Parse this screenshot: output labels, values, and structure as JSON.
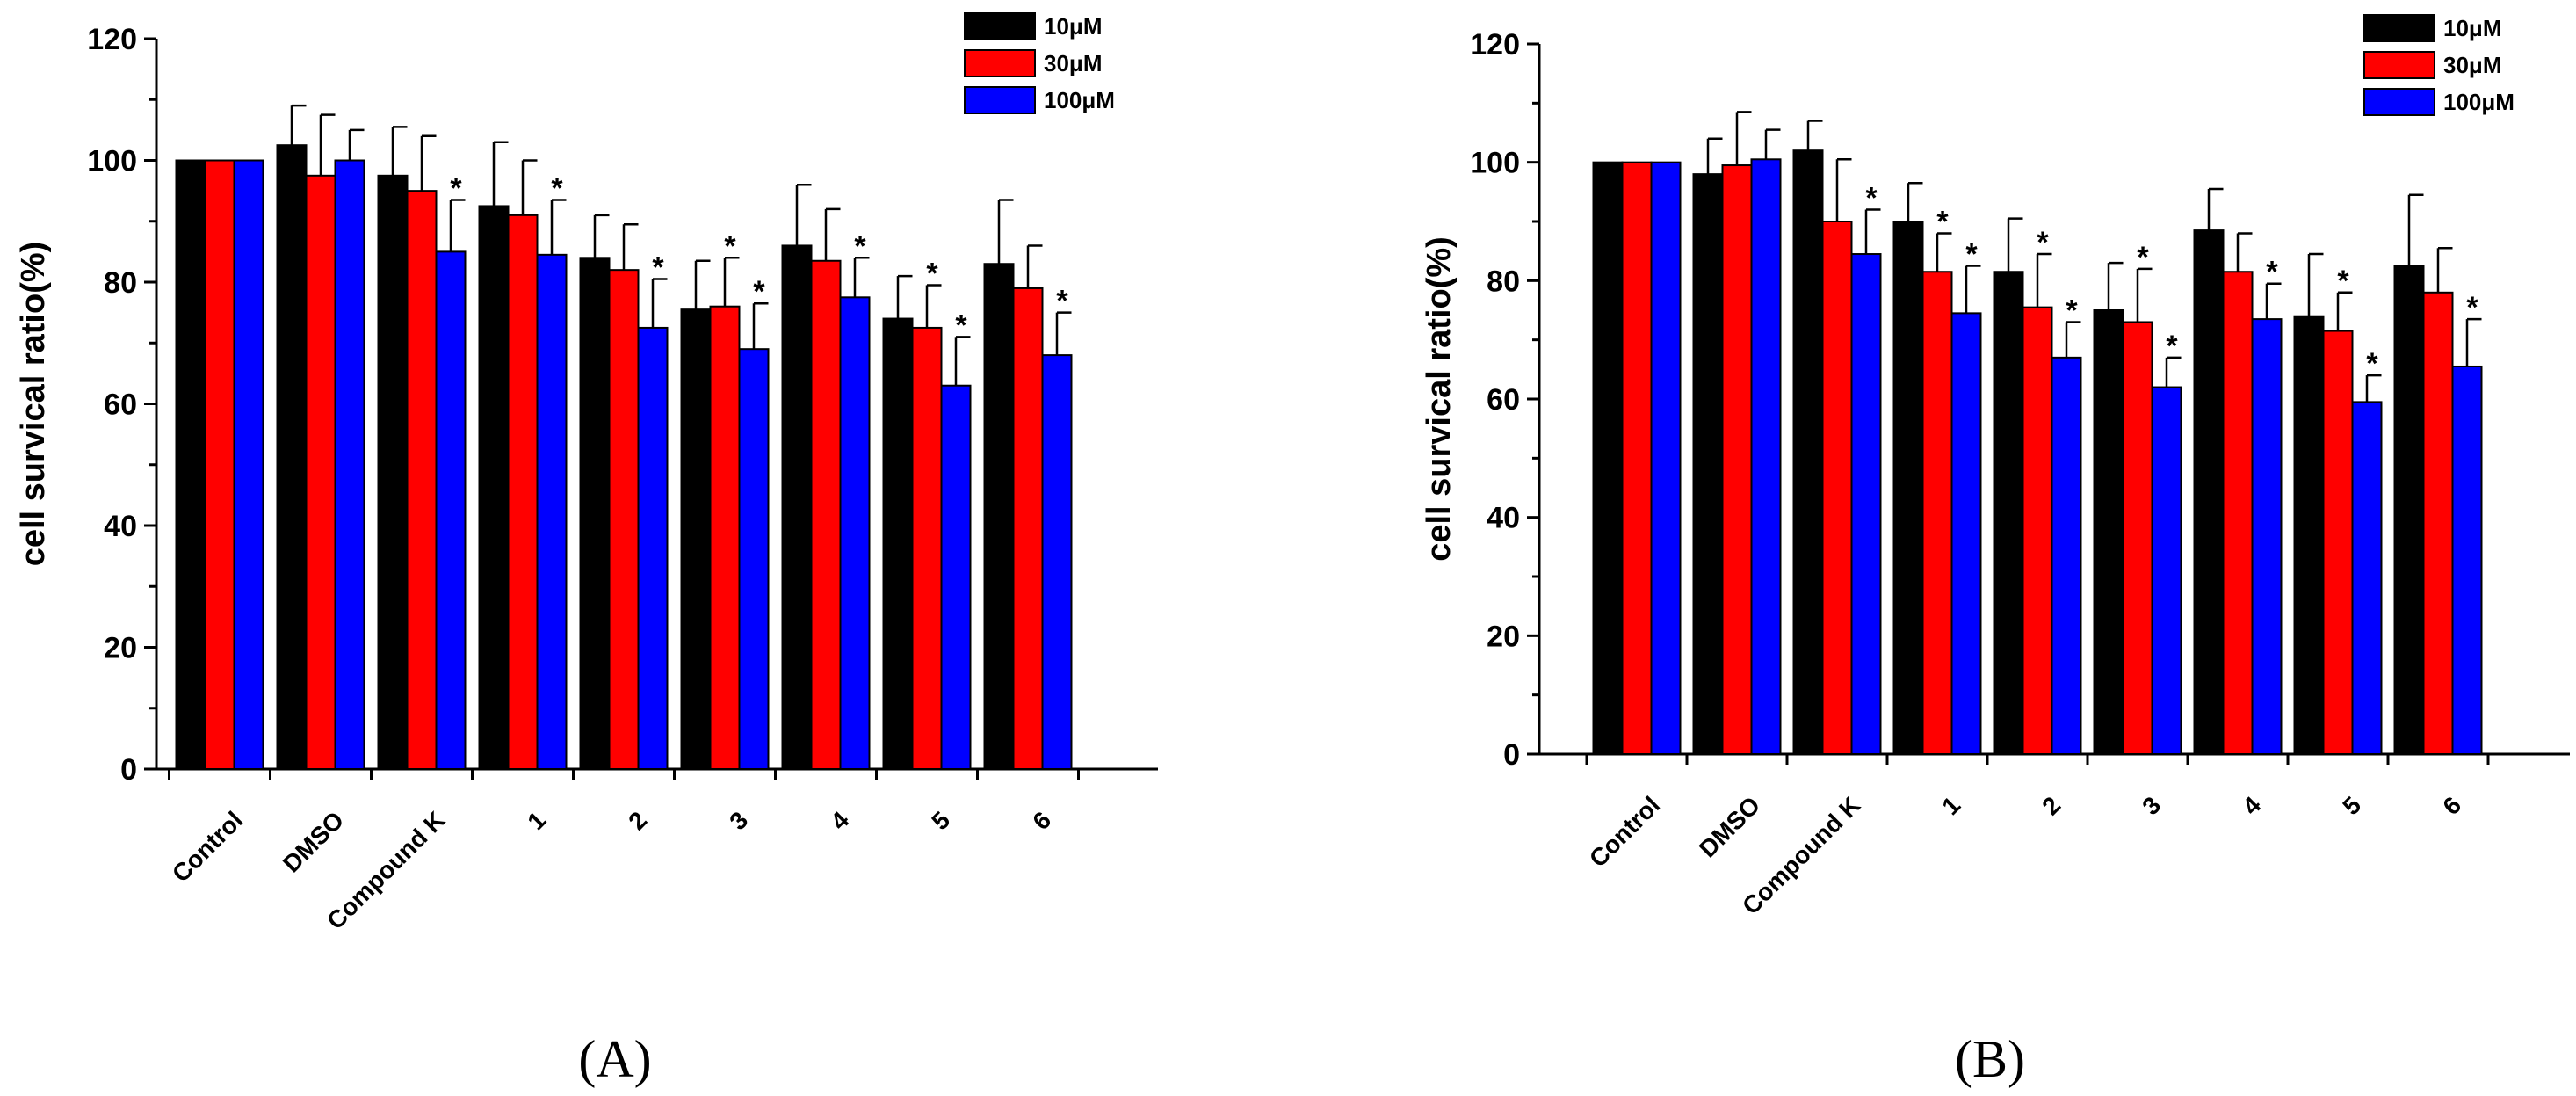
{
  "chart_data": [
    {
      "type": "bar",
      "panel_label": "(A)",
      "title": "",
      "xlabel": "",
      "ylabel": "cell survical ratio(%)",
      "ylim": [
        0,
        120
      ],
      "yticks": [
        0,
        20,
        40,
        60,
        80,
        100,
        120
      ],
      "categories": [
        "Control",
        "DMSO",
        "Compound K",
        "1",
        "2",
        "3",
        "4",
        "5",
        "6"
      ],
      "legend_position": "top-right",
      "series": [
        {
          "name": "10μM",
          "color": "#000000",
          "values": [
            100,
            102.5,
            97.5,
            92.5,
            84,
            75.5,
            86,
            74,
            83
          ],
          "errors": [
            0,
            6.5,
            8,
            10.5,
            7,
            8,
            10,
            7,
            10.5
          ],
          "significant": [
            false,
            false,
            false,
            false,
            false,
            false,
            false,
            false,
            false
          ]
        },
        {
          "name": "30μM",
          "color": "#ff0000",
          "values": [
            100,
            97.5,
            95,
            91,
            82,
            76,
            83.5,
            72.5,
            79
          ],
          "errors": [
            0,
            10,
            9,
            9,
            7.5,
            8,
            8.5,
            7,
            7
          ],
          "significant": [
            false,
            false,
            false,
            false,
            false,
            true,
            false,
            true,
            false
          ]
        },
        {
          "name": "100μM",
          "color": "#0000ff",
          "values": [
            100,
            100,
            85,
            84.5,
            72.5,
            69,
            77.5,
            63,
            68
          ],
          "errors": [
            0,
            5,
            8.5,
            9,
            8,
            7.5,
            6.5,
            8,
            7
          ],
          "significant": [
            false,
            false,
            true,
            true,
            true,
            true,
            true,
            true,
            true
          ]
        }
      ],
      "annotation_mark": "*"
    },
    {
      "type": "bar",
      "panel_label": "(B)",
      "title": "",
      "xlabel": "",
      "ylabel": "cell survical ratio(%)",
      "ylim": [
        0,
        120
      ],
      "yticks": [
        0,
        20,
        40,
        60,
        80,
        100,
        120
      ],
      "categories": [
        "Control",
        "DMSO",
        "Compound K",
        "1",
        "2",
        "3",
        "4",
        "5",
        "6"
      ],
      "legend_position": "top-right",
      "series": [
        {
          "name": "10μM",
          "color": "#000000",
          "values": [
            100,
            98,
            102,
            90,
            81.5,
            75,
            88.5,
            74,
            82.5
          ],
          "errors": [
            0,
            6,
            5,
            6.5,
            9,
            8,
            7,
            10.5,
            12
          ],
          "significant": [
            false,
            false,
            false,
            false,
            false,
            false,
            false,
            false,
            false
          ]
        },
        {
          "name": "30μM",
          "color": "#ff0000",
          "values": [
            100,
            99.5,
            90,
            81.5,
            75.5,
            73,
            81.5,
            71.5,
            78
          ],
          "errors": [
            0,
            9,
            10.5,
            6.5,
            9,
            9,
            6.5,
            6.5,
            7.5
          ],
          "significant": [
            false,
            false,
            false,
            true,
            true,
            true,
            false,
            true,
            false
          ]
        },
        {
          "name": "100μM",
          "color": "#0000ff",
          "values": [
            100,
            100.5,
            84.5,
            74.5,
            67,
            62,
            73.5,
            59.5,
            65.5
          ],
          "errors": [
            0,
            5,
            7.5,
            8,
            6,
            5,
            6,
            4.5,
            8
          ],
          "significant": [
            false,
            false,
            true,
            true,
            true,
            true,
            true,
            true,
            true
          ]
        }
      ],
      "annotation_mark": "*"
    }
  ]
}
